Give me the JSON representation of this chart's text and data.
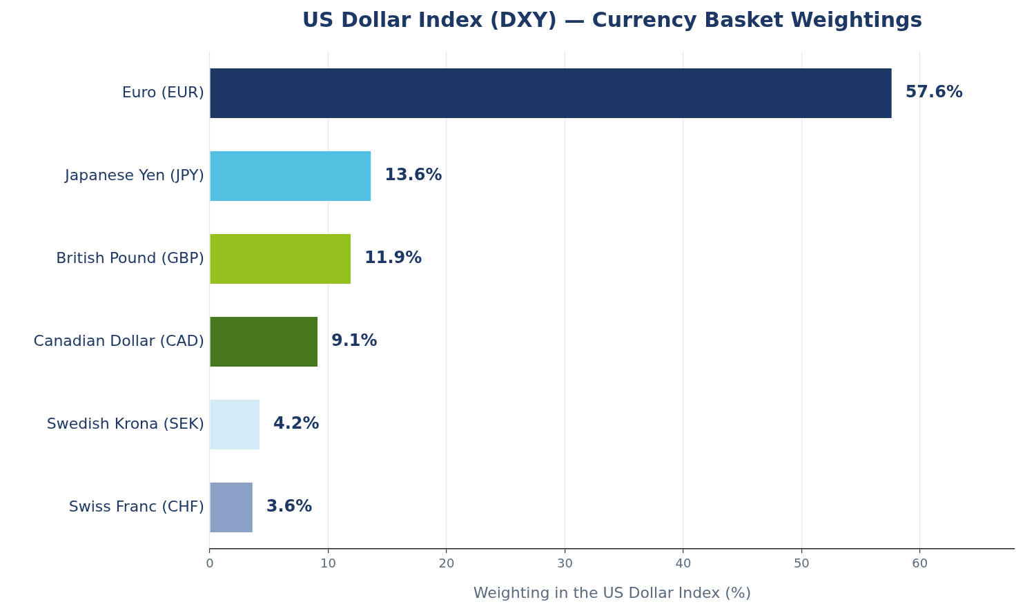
{
  "chart_data": {
    "type": "bar",
    "orientation": "horizontal",
    "title": "US Dollar Index (DXY) — Currency Basket Weightings",
    "xlabel": "Weighting in the US Dollar Index (%)",
    "categories": [
      "Euro (EUR)",
      "Japanese Yen (JPY)",
      "British Pound (GBP)",
      "Canadian Dollar (CAD)",
      "Swedish Krona (SEK)",
      "Swiss Franc (CHF)"
    ],
    "values": [
      57.6,
      13.6,
      11.9,
      9.1,
      4.2,
      3.6
    ],
    "colors": [
      "#1d3864",
      "#52c0e0",
      "#95c11f",
      "#46761e",
      "#d3ebf6",
      "#8aa0c4"
    ],
    "value_labels": [
      "57.6%",
      "13.6%",
      "11.9%",
      "9.1%",
      "4.2%",
      "3.6%"
    ],
    "xlim": [
      0,
      68
    ],
    "xticks": [
      0,
      10,
      20,
      30,
      40,
      50,
      60
    ],
    "grid": "x",
    "legend": false
  }
}
